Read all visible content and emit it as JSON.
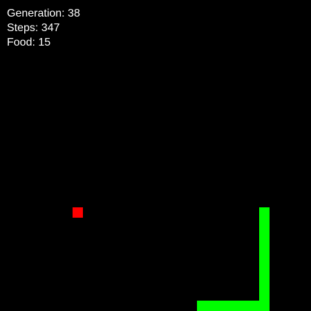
{
  "hud": {
    "generation": "Generation: 38",
    "steps": "Steps: 347",
    "food": "Food: 15"
  },
  "board": {
    "columns": 30,
    "rows": 30,
    "background_color": "#000000"
  },
  "food": {
    "cell": [
      7,
      20
    ],
    "color": "#ff0000"
  },
  "snake": {
    "color": "#00ff00",
    "cells": [
      [
        25,
        20
      ],
      [
        25,
        21
      ],
      [
        25,
        22
      ],
      [
        25,
        23
      ],
      [
        25,
        24
      ],
      [
        25,
        25
      ],
      [
        25,
        26
      ],
      [
        25,
        27
      ],
      [
        25,
        28
      ],
      [
        25,
        29
      ],
      [
        24,
        29
      ],
      [
        23,
        29
      ],
      [
        22,
        29
      ],
      [
        21,
        29
      ],
      [
        20,
        29
      ],
      [
        19,
        29
      ]
    ]
  }
}
